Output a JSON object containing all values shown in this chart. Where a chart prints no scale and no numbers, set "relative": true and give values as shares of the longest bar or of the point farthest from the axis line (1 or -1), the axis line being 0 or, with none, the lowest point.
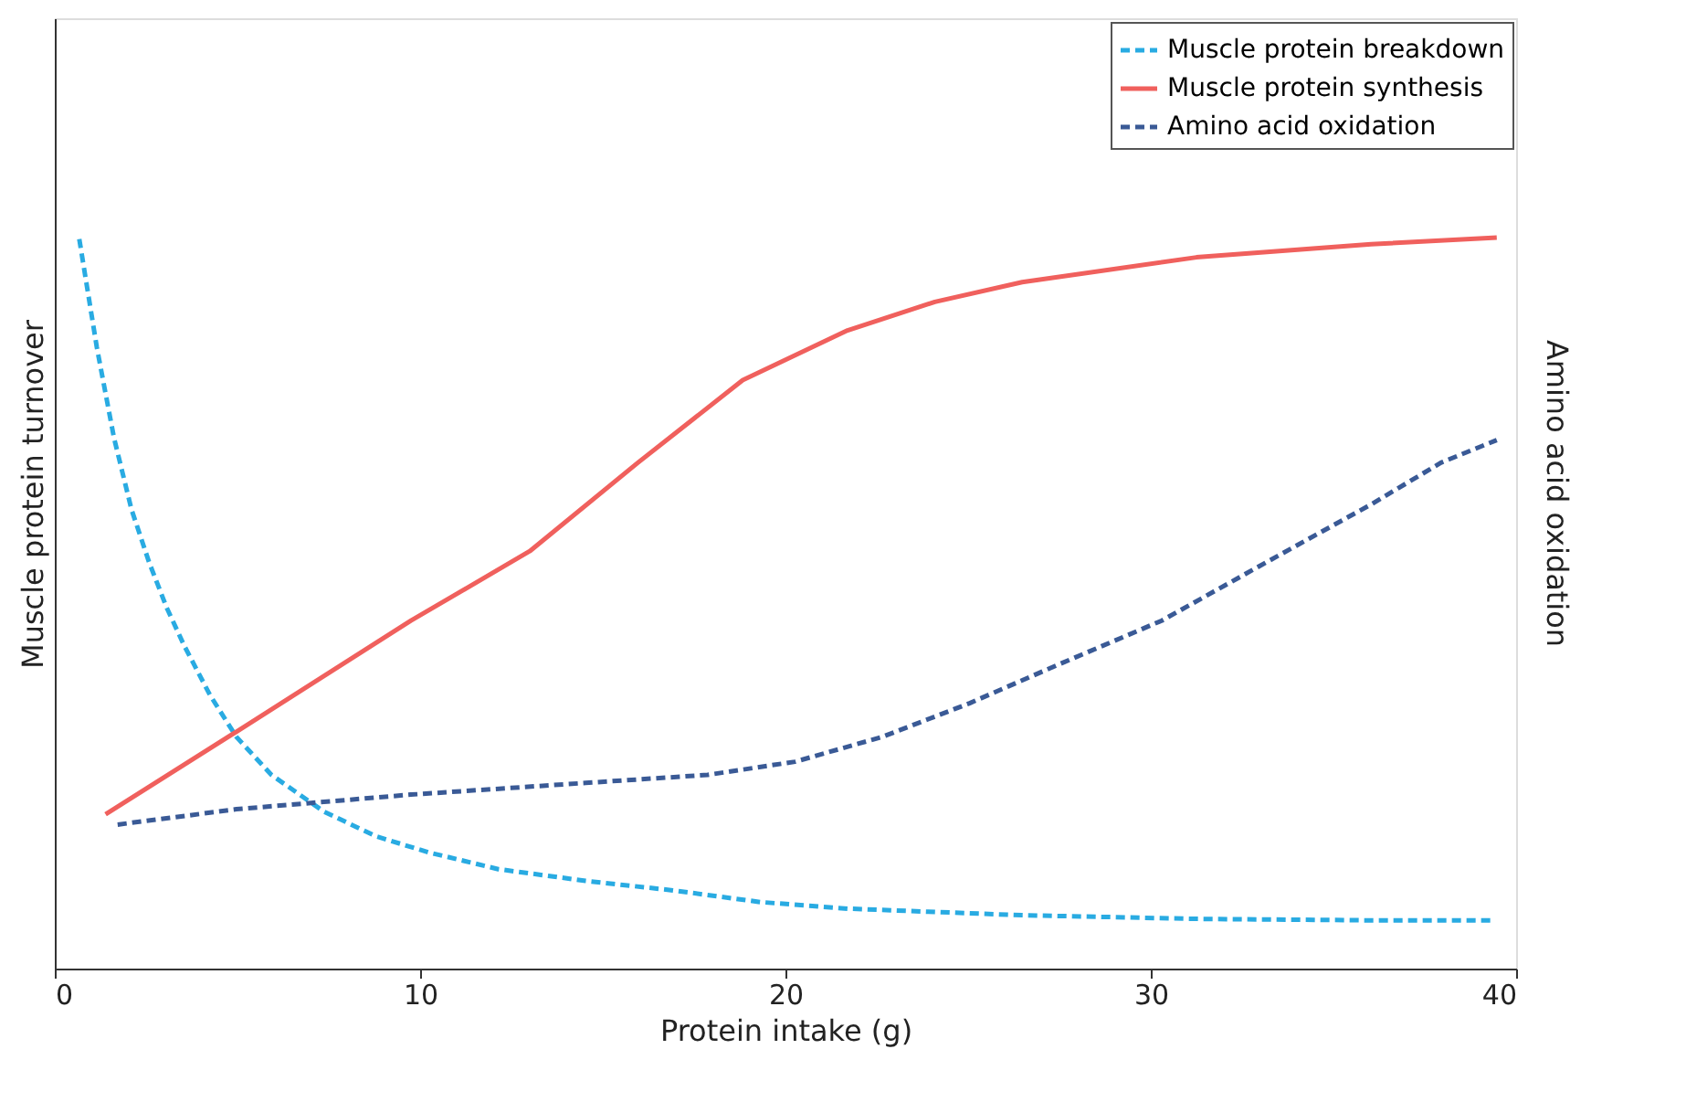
{
  "chart_data": {
    "type": "line",
    "relative": true,
    "xlabel": "Protein intake (g)",
    "ylabel": "Muscle protein turnover",
    "y2label": "Amino acid oxidation",
    "xlim": [
      0,
      40
    ],
    "xticks": [
      0,
      10,
      20,
      30,
      40
    ],
    "legend": "top right",
    "grid": false,
    "series": [
      {
        "name": "Muscle protein breakdown",
        "color": "#29abe2",
        "line_style": "dashed",
        "x": [
          0.67,
          1.15,
          1.62,
          2.1,
          2.58,
          3.06,
          3.54,
          4.25,
          4.97,
          5.93,
          7.36,
          8.79,
          10.23,
          12.14,
          14.53,
          16.92,
          19.31,
          21.7,
          26.48,
          31.25,
          36.03,
          39.38
        ],
        "values": [
          0.998,
          0.85,
          0.726,
          0.628,
          0.556,
          0.494,
          0.442,
          0.374,
          0.317,
          0.265,
          0.215,
          0.181,
          0.159,
          0.136,
          0.12,
          0.107,
          0.091,
          0.082,
          0.073,
          0.068,
          0.066,
          0.066
        ]
      },
      {
        "name": "Muscle protein synthesis",
        "color": "#f0605d",
        "line_style": "solid",
        "x": [
          1.39,
          4.97,
          9.75,
          13.0,
          15.96,
          18.83,
          21.7,
          24.09,
          26.48,
          31.25,
          36.03,
          39.47
        ],
        "values": [
          0.211,
          0.324,
          0.476,
          0.571,
          0.692,
          0.805,
          0.873,
          0.912,
          0.939,
          0.973,
          0.991,
          1.0
        ]
      },
      {
        "name": "Amino acid oxidation",
        "color": "#3a5a96",
        "line_style": "dashed",
        "x": [
          1.72,
          4.97,
          9.75,
          14.53,
          17.87,
          20.26,
          22.65,
          25.04,
          27.43,
          30.3,
          33.17,
          36.03,
          37.94,
          39.47
        ],
        "values": [
          0.197,
          0.218,
          0.238,
          0.254,
          0.265,
          0.283,
          0.317,
          0.363,
          0.415,
          0.476,
          0.556,
          0.635,
          0.692,
          0.723
        ]
      }
    ]
  }
}
